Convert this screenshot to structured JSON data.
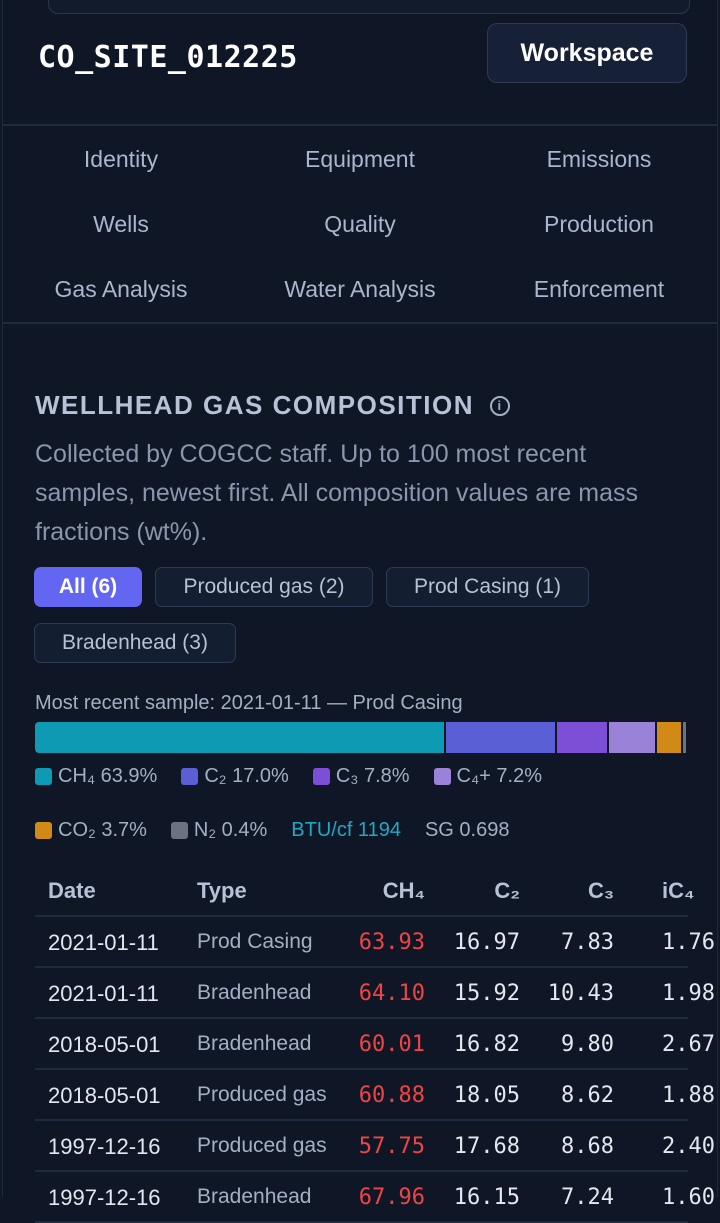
{
  "site": {
    "id": "CO_SITE_012225",
    "workspace_label": "Workspace"
  },
  "nav": [
    "Identity",
    "Equipment",
    "Emissions",
    "Wells",
    "Quality",
    "Production",
    "Gas Analysis",
    "Water Analysis",
    "Enforcement"
  ],
  "section": {
    "title": "WELLHEAD GAS COMPOSITION",
    "info_icon": "i",
    "description": "Collected by COGCC staff. Up to 100 most recent samples, newest first. All composition values are mass fractions (wt%)."
  },
  "filters": [
    {
      "label": "All (6)",
      "active": true
    },
    {
      "label": "Produced gas (2)",
      "active": false
    },
    {
      "label": "Prod Casing (1)",
      "active": false
    },
    {
      "label": "Bradenhead (3)",
      "active": false
    }
  ],
  "recent": {
    "label": "Most recent sample: 2021-01-11 — Prod Casing",
    "segments": [
      {
        "name": "CH₄",
        "value": 63.9,
        "color": "#0e9ab3"
      },
      {
        "name": "C₂",
        "value": 17.0,
        "color": "#5a5fd6"
      },
      {
        "name": "C₃",
        "value": 7.8,
        "color": "#7c4fd6"
      },
      {
        "name": "C₄+",
        "value": 7.2,
        "color": "#9a82d8"
      },
      {
        "name": "CO₂",
        "value": 3.7,
        "color": "#d08a15"
      },
      {
        "name": "N₂",
        "value": 0.4,
        "color": "#6b7280"
      }
    ],
    "legend": [
      "CH₄ 63.9%",
      "C₂ 17.0%",
      "C₃ 7.8%",
      "C₄+ 7.2%",
      "CO₂ 3.7%",
      "N₂ 0.4%"
    ],
    "btu": "BTU/cf 1194",
    "sg": "SG 0.698"
  },
  "table": {
    "headers": [
      "Date",
      "Type",
      "CH₄",
      "C₂",
      "C₃",
      "iC₄"
    ],
    "rows": [
      [
        "2021-01-11",
        "Prod Casing",
        "63.93",
        "16.97",
        "7.83",
        "1.76"
      ],
      [
        "2021-01-11",
        "Bradenhead",
        "64.10",
        "15.92",
        "10.43",
        "1.98"
      ],
      [
        "2018-05-01",
        "Bradenhead",
        "60.01",
        "16.82",
        "9.80",
        "2.67"
      ],
      [
        "2018-05-01",
        "Produced gas",
        "60.88",
        "18.05",
        "8.62",
        "1.88"
      ],
      [
        "1997-12-16",
        "Produced gas",
        "57.75",
        "17.68",
        "8.68",
        "2.40"
      ],
      [
        "1997-12-16",
        "Bradenhead",
        "67.96",
        "16.15",
        "7.24",
        "1.60"
      ]
    ]
  }
}
